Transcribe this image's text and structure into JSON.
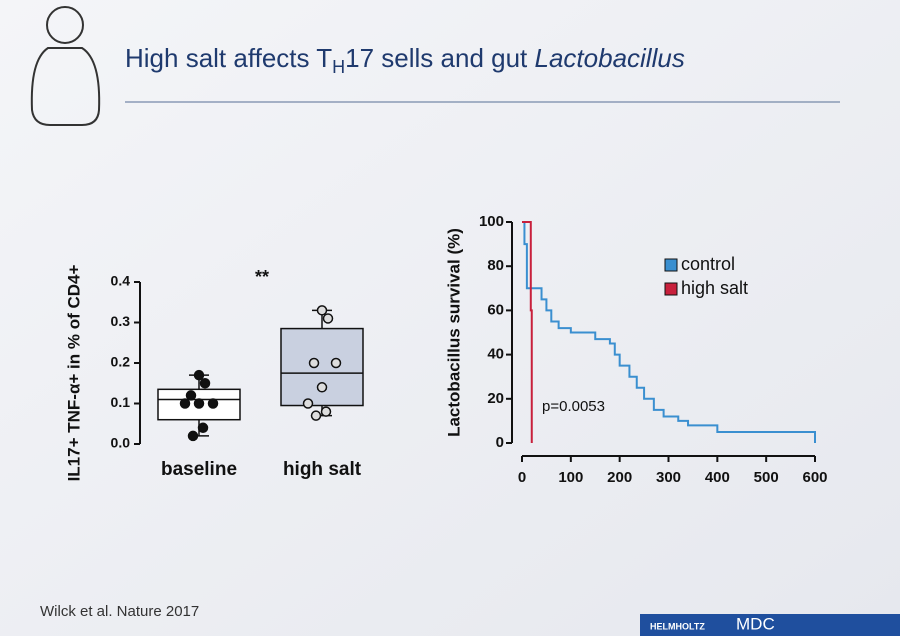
{
  "title": {
    "text": "High salt affects T",
    "subscript": "H",
    "text2": "17 sells and gut ",
    "italic": "Lactobacillus"
  },
  "citation": "Wilck et al. Nature 2017",
  "logos": [
    "HELMHOLTZ",
    "MDC"
  ],
  "chart_data": [
    {
      "type": "box",
      "ylabel": "IL17+ TNF-α+ in % of CD4+",
      "annotation": "**",
      "categories": [
        "baseline",
        "high salt"
      ],
      "ylim": [
        0,
        0.4
      ],
      "yticks": [
        {
          "value": 0,
          "label": "0.0"
        },
        0.1,
        0.2,
        0.3,
        0.4
      ],
      "boxes": [
        {
          "color": "#ffffff",
          "min": 0.02,
          "q1": 0.06,
          "median": 0.11,
          "q3": 0.135,
          "max": 0.17,
          "points": [
            0.02,
            0.04,
            0.1,
            0.1,
            0.1,
            0.12,
            0.15,
            0.17
          ]
        },
        {
          "color": "#c9d0e0",
          "min": 0.07,
          "q1": 0.095,
          "median": 0.175,
          "q3": 0.285,
          "max": 0.33,
          "points": [
            0.07,
            0.08,
            0.1,
            0.14,
            0.2,
            0.2,
            0.31,
            0.33
          ]
        }
      ]
    },
    {
      "type": "line",
      "ylabel": "Lactobacillus survival (%)",
      "annotation": "p=0.0053",
      "legend": "upper right",
      "xlim": [
        0,
        600
      ],
      "xticks": [
        0,
        100,
        200,
        300,
        400,
        500,
        600
      ],
      "ylim": [
        0,
        100
      ],
      "yticks": [
        0,
        20,
        40,
        60,
        80,
        100
      ],
      "series": [
        {
          "name": "control",
          "color": "#3a8fd0",
          "x": [
            0,
            5,
            5,
            10,
            10,
            40,
            40,
            50,
            50,
            60,
            60,
            75,
            75,
            100,
            100,
            150,
            150,
            180,
            180,
            190,
            190,
            200,
            200,
            220,
            220,
            235,
            235,
            250,
            250,
            270,
            270,
            290,
            290,
            320,
            320,
            340,
            340,
            400,
            400,
            600,
            600
          ],
          "values": [
            100,
            100,
            90,
            90,
            70,
            70,
            65,
            65,
            60,
            60,
            55,
            55,
            52,
            52,
            50,
            50,
            47,
            47,
            45,
            45,
            40,
            40,
            35,
            35,
            30,
            30,
            25,
            25,
            20,
            20,
            15,
            15,
            12,
            12,
            10,
            10,
            8,
            8,
            5,
            5,
            0
          ]
        },
        {
          "name": "high salt",
          "color": "#c8203c",
          "x": [
            0,
            18,
            18,
            20,
            20
          ],
          "values": [
            100,
            100,
            60,
            60,
            0
          ]
        }
      ]
    }
  ]
}
